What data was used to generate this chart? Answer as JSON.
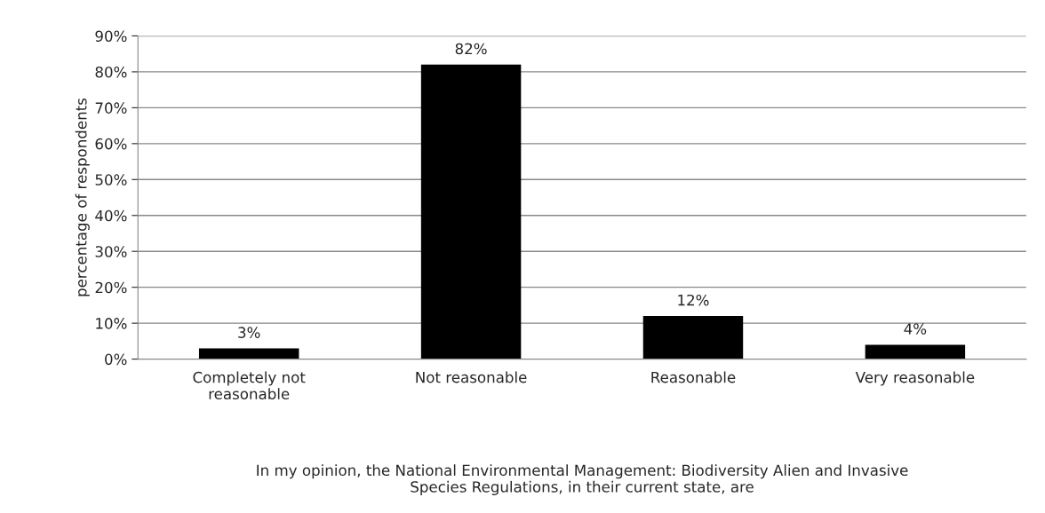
{
  "chart_data": {
    "type": "bar",
    "categories": [
      "Completely not\nreasonable",
      "Not reasonable",
      "Reasonable",
      "Very reasonable"
    ],
    "values": [
      3,
      82,
      12,
      4
    ],
    "value_labels": [
      "3%",
      "82%",
      "12%",
      "4%"
    ],
    "color": "#000000",
    "ylabel": "percentage of respondents",
    "xlabel": "In my opinion, the National Environmental Management: Biodiversity Alien and Invasive\nSpecies Regulations, in their current state, are",
    "ylim": [
      0,
      90
    ],
    "yticks": [
      {
        "value": 0,
        "label": "0%"
      },
      {
        "value": 10,
        "label": "10%"
      },
      {
        "value": 20,
        "label": "20%"
      },
      {
        "value": 30,
        "label": "30%"
      },
      {
        "value": 40,
        "label": "40%"
      },
      {
        "value": 50,
        "label": "50%"
      },
      {
        "value": 60,
        "label": "60%"
      },
      {
        "value": 70,
        "label": "70%"
      },
      {
        "value": 80,
        "label": "80%"
      },
      {
        "value": 90,
        "label": "90%"
      }
    ],
    "grid": "y",
    "legend": false
  }
}
